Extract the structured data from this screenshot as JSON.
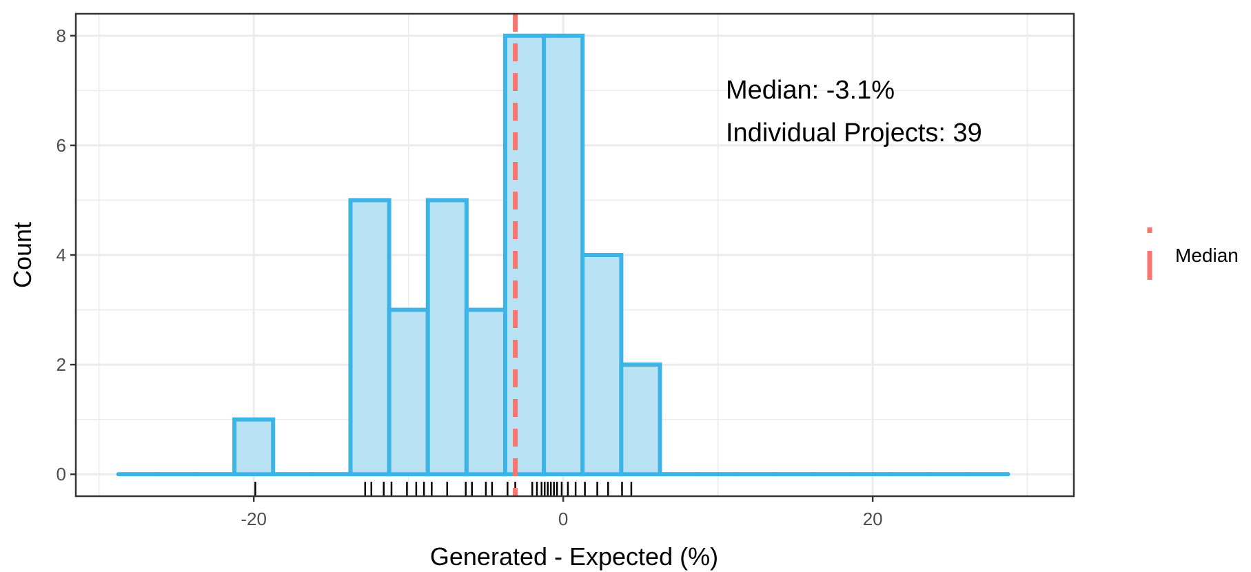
{
  "chart_data": {
    "type": "bar",
    "subtype": "histogram",
    "title": "",
    "xlabel": "Generated - Expected (%)",
    "ylabel": "Count",
    "xlim": [
      -31.5,
      33
    ],
    "ylim": [
      -0.4,
      8.4
    ],
    "x_ticks": [
      -20,
      0,
      20
    ],
    "y_ticks": [
      0,
      2,
      4,
      6,
      8
    ],
    "x_tick_labels": [
      "-20",
      "0",
      "20"
    ],
    "y_tick_labels": [
      "0",
      "2",
      "4",
      "6",
      "8"
    ],
    "grid": true,
    "bin_width": 2.5,
    "bins": [
      {
        "start": -28.75,
        "end": -26.25,
        "count": 0
      },
      {
        "start": -26.25,
        "end": -23.75,
        "count": 0
      },
      {
        "start": -23.75,
        "end": -21.25,
        "count": 0
      },
      {
        "start": -21.25,
        "end": -18.75,
        "count": 1
      },
      {
        "start": -18.75,
        "end": -16.25,
        "count": 0
      },
      {
        "start": -16.25,
        "end": -13.75,
        "count": 0
      },
      {
        "start": -13.75,
        "end": -11.25,
        "count": 5
      },
      {
        "start": -11.25,
        "end": -8.75,
        "count": 3
      },
      {
        "start": -8.75,
        "end": -6.25,
        "count": 5
      },
      {
        "start": -6.25,
        "end": -3.75,
        "count": 3
      },
      {
        "start": -3.75,
        "end": -1.25,
        "count": 8
      },
      {
        "start": -1.25,
        "end": 1.25,
        "count": 8
      },
      {
        "start": 1.25,
        "end": 3.75,
        "count": 4
      },
      {
        "start": 3.75,
        "end": 6.25,
        "count": 2
      },
      {
        "start": 6.25,
        "end": 8.75,
        "count": 0
      },
      {
        "start": 8.75,
        "end": 11.25,
        "count": 0
      },
      {
        "start": 11.25,
        "end": 13.75,
        "count": 0
      },
      {
        "start": 13.75,
        "end": 16.25,
        "count": 0
      },
      {
        "start": 16.25,
        "end": 18.75,
        "count": 0
      },
      {
        "start": 18.75,
        "end": 21.25,
        "count": 0
      },
      {
        "start": 21.25,
        "end": 23.75,
        "count": 0
      },
      {
        "start": 23.75,
        "end": 26.25,
        "count": 0
      },
      {
        "start": 26.25,
        "end": 28.75,
        "count": 0
      }
    ],
    "rug_values": [
      -19.9,
      -12.8,
      -12.4,
      -11.6,
      -11.1,
      -10.1,
      -9.5,
      -9.0,
      -8.5,
      -7.5,
      -6.3,
      -5.9,
      -5.0,
      -4.6,
      -3.6,
      -3.1,
      -2.0,
      -1.7,
      -1.4,
      -1.2,
      -1.0,
      -0.8,
      -0.6,
      -0.4,
      -0.1,
      0.3,
      0.8,
      1.4,
      2.2,
      2.9,
      3.8,
      4.4
    ],
    "median": -3.1,
    "annotations": [
      "Median: -3.1%",
      "Individual Projects: 39"
    ],
    "legend": {
      "position": "right",
      "entries": [
        {
          "label": "Median",
          "color": "#f8766d",
          "style": "dashed"
        }
      ]
    },
    "colors": {
      "bar_fill": "#b9e3f4",
      "bar_outline": "#3cb4e5",
      "median_line": "#f8766d",
      "rug": "#000000",
      "grid": "#ebebeb",
      "panel_border": "#333333"
    }
  }
}
